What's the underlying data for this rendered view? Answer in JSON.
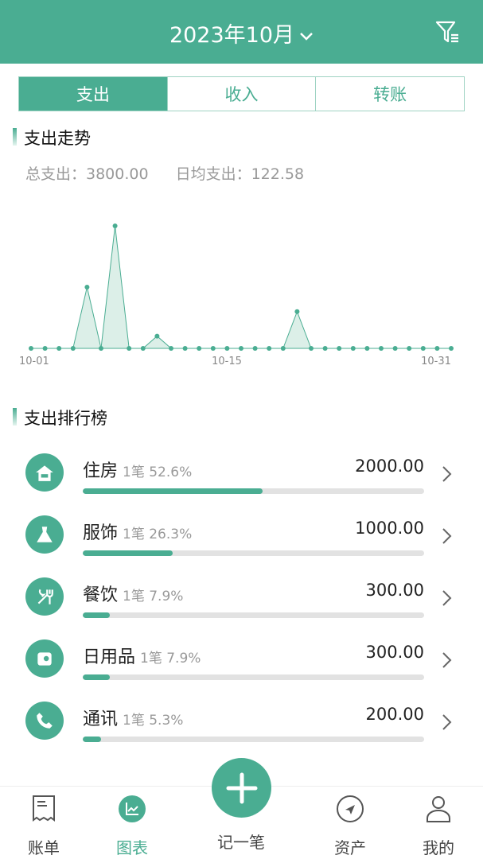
{
  "header": {
    "title": "2023年10月",
    "filter_icon": "filter-list-icon"
  },
  "tabs": [
    {
      "label": "支出",
      "active": true
    },
    {
      "label": "收入"
    },
    {
      "label": "转账"
    }
  ],
  "trend": {
    "title": "支出走势",
    "total_label": "总支出：3800.00",
    "avg_label": "日均支出：122.58"
  },
  "chart_data": {
    "type": "area",
    "x_ticks": [
      "10-01",
      "10-15",
      "10-31"
    ],
    "days": [
      1,
      2,
      3,
      4,
      5,
      6,
      7,
      8,
      9,
      10,
      11,
      12,
      13,
      14,
      15,
      16,
      17,
      18,
      19,
      20,
      21,
      22,
      23,
      24,
      25,
      26,
      27,
      28,
      29,
      30,
      31
    ],
    "values": [
      0,
      0,
      0,
      0,
      1000,
      0,
      2000,
      0,
      0,
      200,
      0,
      0,
      0,
      0,
      0,
      0,
      0,
      0,
      0,
      600,
      0,
      0,
      0,
      0,
      0,
      0,
      0,
      0,
      0,
      0,
      0
    ],
    "color": "#4aad92"
  },
  "ranking": {
    "title": "支出排行榜",
    "items": [
      {
        "name": "住房",
        "meta": "1笔 52.6%",
        "amount": "2000.00",
        "percent": 52.6,
        "icon": "house-icon"
      },
      {
        "name": "服饰",
        "meta": "1笔 26.3%",
        "amount": "1000.00",
        "percent": 26.3,
        "icon": "dress-icon"
      },
      {
        "name": "餐饮",
        "meta": "1笔 7.9%",
        "amount": "300.00",
        "percent": 7.9,
        "icon": "utensils-icon"
      },
      {
        "name": "日用品",
        "meta": "1笔 7.9%",
        "amount": "300.00",
        "percent": 7.9,
        "icon": "tissue-roll-icon"
      },
      {
        "name": "通讯",
        "meta": "1笔 5.3%",
        "amount": "200.00",
        "percent": 5.3,
        "icon": "phone-icon"
      }
    ]
  },
  "nav": {
    "bill": "账单",
    "chart": "图表",
    "add": "记一笔",
    "assets": "资产",
    "mine": "我的"
  }
}
